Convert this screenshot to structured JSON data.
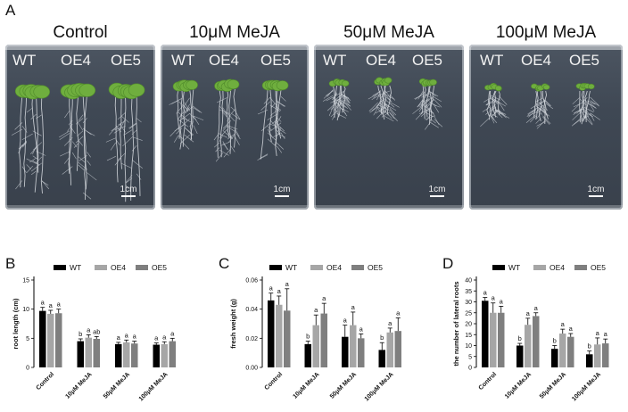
{
  "panel_a": {
    "letter": "A",
    "plates": [
      {
        "title": "Control",
        "labels": [
          "WT",
          "OE4",
          "OE5"
        ],
        "scale": "1cm"
      },
      {
        "title": "10μM MeJA",
        "labels": [
          "WT",
          "OE4",
          "OE5"
        ],
        "scale": "1cm"
      },
      {
        "title": "50μM MeJA",
        "labels": [
          "WT",
          "OE4",
          "OE5"
        ],
        "scale": "1cm"
      },
      {
        "title": "100μM MeJA",
        "labels": [
          "WT",
          "OE4",
          "OE5"
        ],
        "scale": "1cm"
      }
    ]
  },
  "colors": {
    "WT": "#000000",
    "OE4": "#a6a6a6",
    "OE5": "#7f7f7f",
    "leaf": "#6fae3e",
    "plate": "#434c58"
  },
  "chart_data": [
    {
      "panel": "B",
      "type": "bar",
      "ylabel": "root length (cm)",
      "ylim": [
        0,
        15
      ],
      "yticks": [
        0,
        5,
        10,
        15
      ],
      "categories": [
        "Control",
        "10μM MeJA",
        "50μM MeJA",
        "100μM MeJA"
      ],
      "series": [
        {
          "name": "WT",
          "values": [
            9.7,
            4.5,
            4.0,
            3.9
          ],
          "errors": [
            0.6,
            0.4,
            0.3,
            0.3
          ],
          "letters": [
            "a",
            "b",
            "a",
            "a"
          ]
        },
        {
          "name": "OE4",
          "values": [
            9.2,
            5.1,
            4.3,
            4.0
          ],
          "errors": [
            0.6,
            0.5,
            0.4,
            0.4
          ],
          "letters": [
            "a",
            "a",
            "a",
            "a"
          ]
        },
        {
          "name": "OE5",
          "values": [
            9.3,
            4.9,
            4.1,
            4.5
          ],
          "errors": [
            0.7,
            0.4,
            0.4,
            0.5
          ],
          "letters": [
            "a",
            "ab",
            "a",
            "a"
          ]
        }
      ],
      "legend": "top"
    },
    {
      "panel": "C",
      "type": "bar",
      "ylabel": "fresh weight (g)",
      "ylim": [
        0,
        0.06
      ],
      "yticks": [
        0.0,
        0.02,
        0.04,
        0.06
      ],
      "yticklabels": [
        "0.00",
        "0.02",
        "0.04",
        "0.06"
      ],
      "categories": [
        "Control",
        "10μM MeJA",
        "50μM MeJA",
        "100μM MeJA"
      ],
      "series": [
        {
          "name": "WT",
          "values": [
            0.046,
            0.016,
            0.021,
            0.012
          ],
          "errors": [
            0.005,
            0.002,
            0.008,
            0.005
          ],
          "letters": [
            "a",
            "b",
            "a",
            "b"
          ]
        },
        {
          "name": "OE4",
          "values": [
            0.043,
            0.029,
            0.029,
            0.024
          ],
          "errors": [
            0.006,
            0.007,
            0.009,
            0.003
          ],
          "letters": [
            "a",
            "a",
            "a",
            "a"
          ]
        },
        {
          "name": "OE5",
          "values": [
            0.039,
            0.037,
            0.02,
            0.025
          ],
          "errors": [
            0.015,
            0.007,
            0.003,
            0.009
          ],
          "letters": [
            "a",
            "a",
            "a",
            "a"
          ]
        }
      ],
      "legend": "top"
    },
    {
      "panel": "D",
      "type": "bar",
      "ylabel": "the number of lateral roots",
      "ylim": [
        0,
        40
      ],
      "yticks": [
        0,
        5,
        10,
        15,
        20,
        25,
        30,
        35,
        40
      ],
      "categories": [
        "Control",
        "10μM MeJA",
        "50μM MeJA",
        "100μM MeJA"
      ],
      "series": [
        {
          "name": "WT",
          "values": [
            30.5,
            10.0,
            8.5,
            6.0
          ],
          "errors": [
            1.5,
            1.0,
            1.5,
            1.5
          ],
          "letters": [
            "a",
            "b",
            "b",
            "b"
          ]
        },
        {
          "name": "OE4",
          "values": [
            25.0,
            19.5,
            15.5,
            10.5
          ],
          "errors": [
            4.5,
            3.0,
            2.0,
            3.0
          ],
          "letters": [
            "a",
            "a",
            "a",
            "a"
          ]
        },
        {
          "name": "OE5",
          "values": [
            25.0,
            23.5,
            14.0,
            11.0
          ],
          "errors": [
            3.0,
            1.5,
            1.5,
            2.0
          ],
          "letters": [
            "a",
            "a",
            "a",
            "a"
          ]
        }
      ],
      "legend": "top"
    }
  ]
}
